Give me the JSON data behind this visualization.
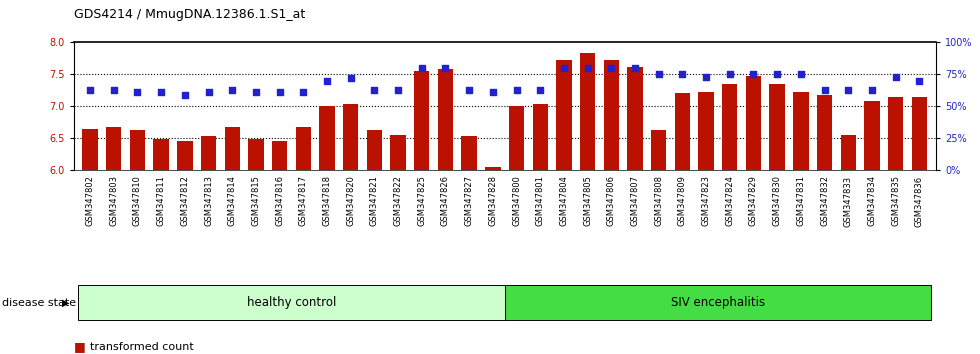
{
  "title": "GDS4214 / MmugDNA.12386.1.S1_at",
  "samples": [
    "GSM347802",
    "GSM347803",
    "GSM347810",
    "GSM347811",
    "GSM347812",
    "GSM347813",
    "GSM347814",
    "GSM347815",
    "GSM347816",
    "GSM347817",
    "GSM347818",
    "GSM347820",
    "GSM347821",
    "GSM347822",
    "GSM347825",
    "GSM347826",
    "GSM347827",
    "GSM347828",
    "GSM347800",
    "GSM347801",
    "GSM347804",
    "GSM347805",
    "GSM347806",
    "GSM347807",
    "GSM347808",
    "GSM347809",
    "GSM347823",
    "GSM347824",
    "GSM347829",
    "GSM347830",
    "GSM347831",
    "GSM347832",
    "GSM347833",
    "GSM347834",
    "GSM347835",
    "GSM347836"
  ],
  "bar_values": [
    6.65,
    6.68,
    6.62,
    6.48,
    6.45,
    6.54,
    6.68,
    6.49,
    6.46,
    6.68,
    7.0,
    7.04,
    6.63,
    6.55,
    7.55,
    7.58,
    6.54,
    6.04,
    7.01,
    7.04,
    7.72,
    7.83,
    7.72,
    7.61,
    6.63,
    7.2,
    7.22,
    7.35,
    7.47,
    7.35,
    7.22,
    7.18,
    6.55,
    7.08,
    7.14,
    7.14
  ],
  "percentile_values": [
    63,
    63,
    61,
    61,
    59,
    61,
    63,
    61,
    61,
    61,
    70,
    72,
    63,
    63,
    80,
    80,
    63,
    61,
    63,
    63,
    80,
    80,
    80,
    80,
    75,
    75,
    73,
    75,
    75,
    75,
    75,
    63,
    63,
    63,
    73,
    70
  ],
  "n_healthy": 18,
  "n_total": 36,
  "group_labels": [
    "healthy control",
    "SIV encephalitis"
  ],
  "group_colors": [
    "#ccffcc",
    "#44dd44"
  ],
  "ylim_left": [
    6.0,
    8.0
  ],
  "ylim_right": [
    0,
    100
  ],
  "yticks_left": [
    6.0,
    6.5,
    7.0,
    7.5,
    8.0
  ],
  "yticks_right": [
    0,
    25,
    50,
    75,
    100
  ],
  "bar_color": "#bb1100",
  "percentile_color": "#2222cc",
  "plot_bg": "#ffffff",
  "xtick_bg": "#cccccc",
  "dotted_lines": [
    6.5,
    7.0,
    7.5
  ],
  "title_fontsize": 9,
  "tick_fontsize": 7,
  "label_fontsize": 8
}
